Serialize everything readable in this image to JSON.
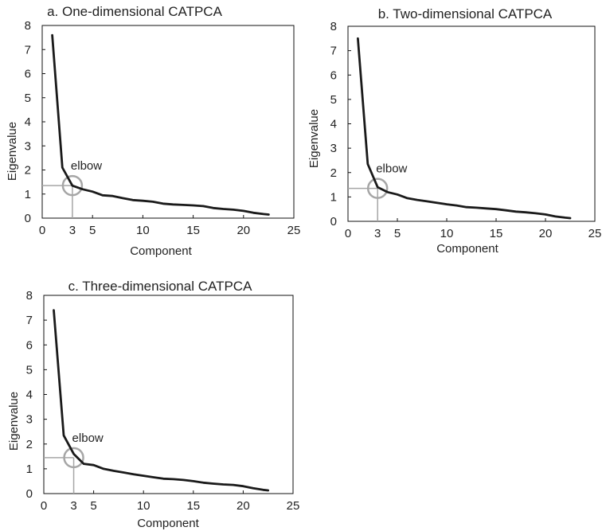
{
  "chart_data": [
    {
      "type": "line",
      "title": "a. One-dimensional CATPCA",
      "xlabel": "Component",
      "ylabel": "Eigenvalue",
      "xlim": [
        0,
        25
      ],
      "ylim": [
        0,
        8
      ],
      "xticks": [
        0,
        3,
        5,
        10,
        15,
        20,
        25
      ],
      "yticks": [
        0,
        1,
        2,
        3,
        4,
        5,
        6,
        7,
        8
      ],
      "grid": false,
      "annotation": {
        "text": "elbow",
        "x": 3,
        "y": 1.35
      },
      "series": [
        {
          "x": [
            1,
            2,
            3,
            4,
            5,
            6,
            7,
            8,
            9,
            10,
            11,
            12,
            13,
            14,
            15,
            16,
            17,
            18,
            19,
            20,
            21,
            22,
            22.5
          ],
          "values": [
            7.6,
            2.1,
            1.35,
            1.2,
            1.1,
            0.95,
            0.92,
            0.83,
            0.75,
            0.72,
            0.68,
            0.6,
            0.57,
            0.55,
            0.53,
            0.5,
            0.42,
            0.38,
            0.35,
            0.3,
            0.22,
            0.17,
            0.15
          ]
        }
      ]
    },
    {
      "type": "line",
      "title": "b. Two-dimensional CATPCA",
      "xlabel": "Component",
      "ylabel": "Eigenvalue",
      "xlim": [
        0,
        25
      ],
      "ylim": [
        0,
        8
      ],
      "xticks": [
        0,
        3,
        5,
        10,
        15,
        20,
        25
      ],
      "yticks": [
        0,
        1,
        2,
        3,
        4,
        5,
        6,
        7,
        8
      ],
      "grid": false,
      "annotation": {
        "text": "elbow",
        "x": 3,
        "y": 1.35
      },
      "series": [
        {
          "x": [
            1,
            2,
            3,
            4,
            5,
            6,
            7,
            8,
            9,
            10,
            11,
            12,
            13,
            14,
            15,
            16,
            17,
            18,
            19,
            20,
            21,
            22,
            22.5
          ],
          "values": [
            7.5,
            2.35,
            1.4,
            1.2,
            1.1,
            0.95,
            0.88,
            0.82,
            0.76,
            0.7,
            0.65,
            0.58,
            0.56,
            0.53,
            0.5,
            0.45,
            0.4,
            0.37,
            0.33,
            0.28,
            0.2,
            0.15,
            0.13
          ]
        }
      ]
    },
    {
      "type": "line",
      "title": "c. Three-dimensional CATPCA",
      "xlabel": "Component",
      "ylabel": "Eigenvalue",
      "xlim": [
        0,
        25
      ],
      "ylim": [
        0,
        8
      ],
      "xticks": [
        0,
        3,
        5,
        10,
        15,
        20,
        25
      ],
      "yticks": [
        0,
        1,
        2,
        3,
        4,
        5,
        6,
        7,
        8
      ],
      "grid": false,
      "annotation": {
        "text": "elbow",
        "x": 3,
        "y": 1.45
      },
      "series": [
        {
          "x": [
            1,
            2,
            3,
            4,
            5,
            6,
            7,
            8,
            9,
            10,
            11,
            12,
            13,
            14,
            15,
            16,
            17,
            18,
            19,
            20,
            21,
            22,
            22.5
          ],
          "values": [
            7.4,
            2.35,
            1.6,
            1.2,
            1.15,
            1.0,
            0.92,
            0.85,
            0.78,
            0.72,
            0.66,
            0.6,
            0.58,
            0.55,
            0.5,
            0.44,
            0.4,
            0.37,
            0.35,
            0.3,
            0.22,
            0.15,
            0.13
          ]
        }
      ]
    }
  ],
  "colors": {
    "line": "#1a1a1a",
    "elbow": "#a6a6a6",
    "axis": "#111111",
    "text": "#222222"
  }
}
